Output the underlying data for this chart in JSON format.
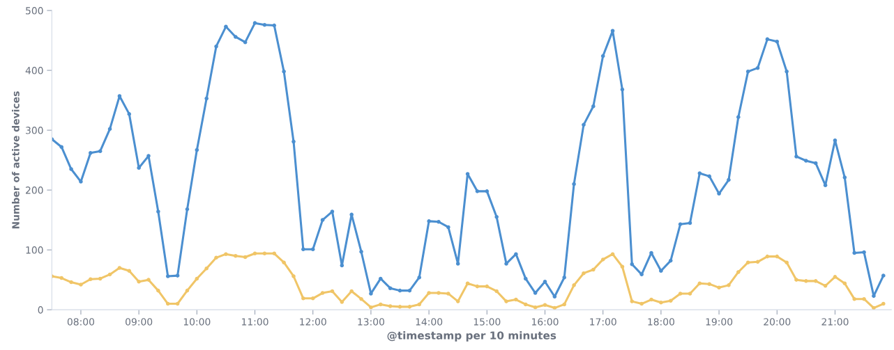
{
  "chart_data": {
    "type": "line",
    "xlabel": "@timestamp per 10 minutes",
    "ylabel": "Number of active devices",
    "x": [
      7.5,
      7.6667,
      7.8333,
      8,
      8.1667,
      8.3333,
      8.5,
      8.6667,
      8.8333,
      9,
      9.1667,
      9.3333,
      9.5,
      9.6667,
      9.8333,
      10,
      10.1667,
      10.3333,
      10.5,
      10.6667,
      10.8333,
      11,
      11.1667,
      11.3333,
      11.5,
      11.6667,
      11.8333,
      12,
      12.1667,
      12.3333,
      12.5,
      12.6667,
      12.8333,
      13,
      13.1667,
      13.3333,
      13.5,
      13.6667,
      13.8333,
      14,
      14.1667,
      14.3333,
      14.5,
      14.6667,
      14.8333,
      15,
      15.1667,
      15.3333,
      15.5,
      15.6667,
      15.8333,
      16,
      16.1667,
      16.3333,
      16.5,
      16.6667,
      16.8333,
      17,
      17.1667,
      17.3333,
      17.5,
      17.6667,
      17.8333,
      18,
      18.1667,
      18.3333,
      18.5,
      18.6667,
      18.8333,
      19,
      19.1667,
      19.3333,
      19.5,
      19.6667,
      19.8333,
      20,
      20.1667,
      20.3333,
      20.5,
      20.6667,
      20.8333,
      21,
      21.1667,
      21.3333,
      21.5,
      21.6667,
      21.8333
    ],
    "series": [
      {
        "color": "#4b8fd0",
        "values": [
          285,
          272,
          235,
          214,
          262,
          265,
          302,
          357,
          327,
          237,
          257,
          164,
          56,
          57,
          168,
          267,
          353,
          440,
          473,
          456,
          447,
          479,
          476,
          475,
          398,
          281,
          101,
          101,
          150,
          164,
          74,
          159,
          97,
          27,
          52,
          36,
          32,
          32,
          54,
          148,
          147,
          138,
          77,
          227,
          198,
          198,
          155,
          77,
          93,
          52,
          28,
          47,
          22,
          54,
          210,
          309,
          340,
          424,
          466,
          368,
          76,
          59,
          95,
          65,
          82,
          143,
          145,
          228,
          223,
          194,
          217,
          322,
          398,
          404,
          452,
          448,
          398,
          256,
          249,
          245,
          208,
          283,
          221,
          95,
          96,
          23,
          57
        ]
      },
      {
        "color": "#f0c567",
        "values": [
          56,
          53,
          46,
          42,
          51,
          52,
          59,
          70,
          65,
          47,
          50,
          32,
          10,
          10,
          32,
          52,
          69,
          87,
          93,
          90,
          88,
          94,
          94,
          94,
          79,
          56,
          19,
          19,
          28,
          31,
          13,
          31,
          18,
          4,
          9,
          6,
          5,
          5,
          9,
          28,
          28,
          27,
          14,
          44,
          39,
          39,
          31,
          14,
          17,
          9,
          4,
          8,
          3,
          9,
          41,
          61,
          67,
          84,
          93,
          72,
          14,
          10,
          17,
          12,
          15,
          27,
          27,
          44,
          43,
          37,
          41,
          63,
          79,
          80,
          89,
          89,
          79,
          50,
          48,
          48,
          40,
          55,
          44,
          18,
          18,
          3,
          10
        ]
      }
    ],
    "xlim": [
      7.5,
      21.97
    ],
    "xticks": [
      {
        "value": 8,
        "label": "08:00"
      },
      {
        "value": 9,
        "label": "09:00"
      },
      {
        "value": 10,
        "label": "10:00"
      },
      {
        "value": 11,
        "label": "11:00"
      },
      {
        "value": 12,
        "label": "12:00"
      },
      {
        "value": 13,
        "label": "13:00"
      },
      {
        "value": 14,
        "label": "14:00"
      },
      {
        "value": 15,
        "label": "15:00"
      },
      {
        "value": 16,
        "label": "16:00"
      },
      {
        "value": 17,
        "label": "17:00"
      },
      {
        "value": 18,
        "label": "18:00"
      },
      {
        "value": 19,
        "label": "19:00"
      },
      {
        "value": 20,
        "label": "20:00"
      },
      {
        "value": 21,
        "label": "21:00"
      }
    ],
    "ylim": [
      0,
      500
    ],
    "yticks": [
      0,
      100,
      200,
      300,
      400,
      500
    ],
    "grid": false,
    "marker": "circle",
    "line_style": "solid"
  }
}
